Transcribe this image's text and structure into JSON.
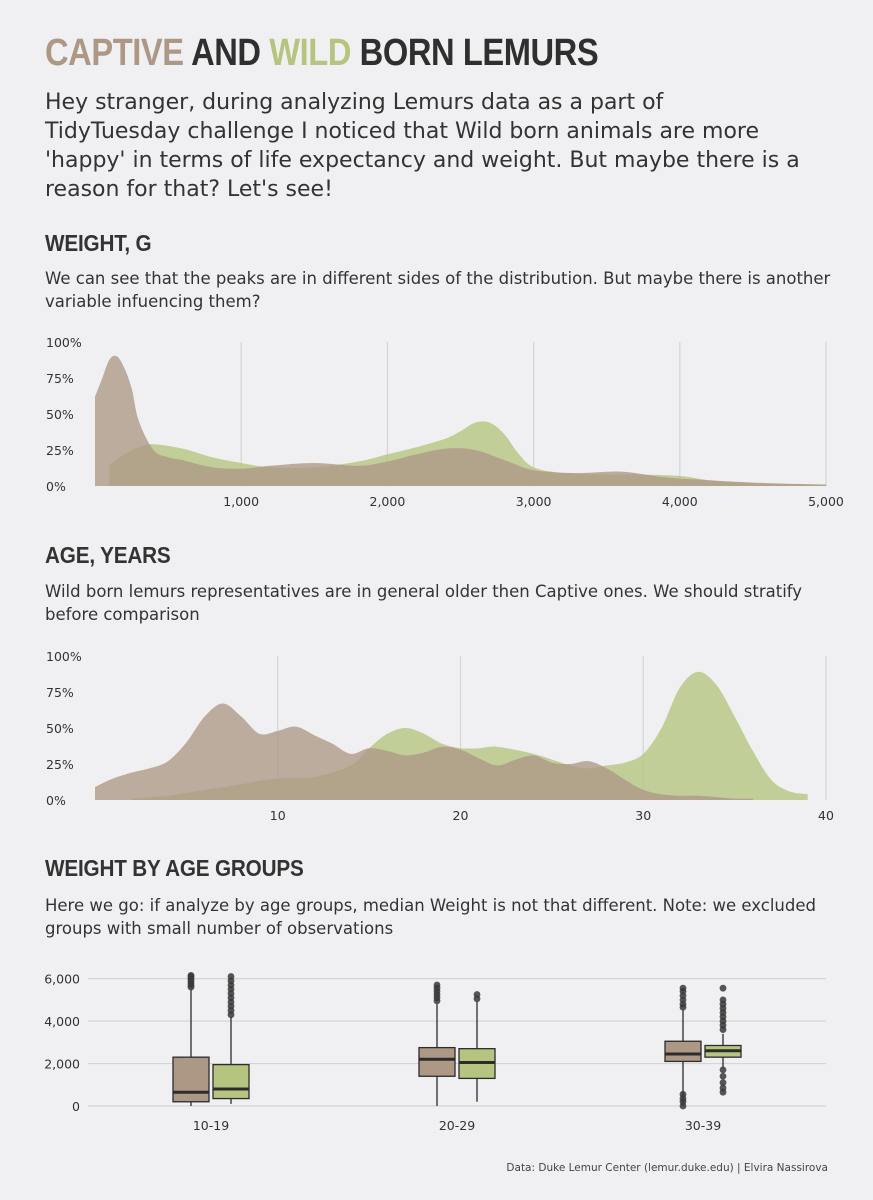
{
  "title": {
    "word1": "CAPTIVE",
    "word2": "AND",
    "word3": "WILD",
    "word4": "BORN LEMURS"
  },
  "intro": "Hey stranger, during analyzing Lemurs data as a part of TidyTuesday challenge I noticed that Wild born animals are more 'happy' in terms of life expectancy and weight. But maybe there is a reason for that? Let's see!",
  "sections": [
    {
      "title": "WEIGHT, G",
      "subtitle": "We can see that the peaks are in different sides of the distribution. But maybe there is another variable infuencing them?"
    },
    {
      "title": "AGE, YEARS",
      "subtitle": "Wild born lemurs representatives are in general older then Captive ones. We should stratify before comparison"
    },
    {
      "title": "WEIGHT BY AGE GROUPS",
      "subtitle": "Here we go: if analyze by age groups, median Weight is not that different. Note: we excluded groups with small number of observations"
    }
  ],
  "caption": "Data: Duke Lemur Center (lemur.duke.edu) | Elvira Nassirova",
  "colors": {
    "captive": "#ad9886",
    "wild": "#b5c47e",
    "text": "#333333",
    "grid": "#d4d4d4"
  },
  "chart_data": [
    {
      "type": "area",
      "xlim": [
        0,
        5000
      ],
      "ylim": [
        0,
        1
      ],
      "x_ticks": [
        1000,
        2000,
        3000,
        4000,
        5000
      ],
      "x_tick_labels": [
        "1,000",
        "2,000",
        "3,000",
        "4,000",
        "5,000"
      ],
      "y_ticks": [
        0,
        0.25,
        0.5,
        0.75,
        1
      ],
      "y_tick_labels": [
        "0%",
        "25%",
        "50%",
        "75%",
        "100%"
      ],
      "grid": "vertical",
      "series": [
        {
          "key": "wild",
          "x": [
            100,
            200,
            300,
            400,
            600,
            800,
            1000,
            1200,
            1500,
            1800,
            2000,
            2200,
            2400,
            2500,
            2600,
            2700,
            2800,
            2900,
            3000,
            3200,
            3500,
            3700,
            4000,
            4200,
            4500,
            5000
          ],
          "values": [
            0.15,
            0.22,
            0.27,
            0.29,
            0.26,
            0.2,
            0.16,
            0.13,
            0.13,
            0.17,
            0.22,
            0.27,
            0.33,
            0.38,
            0.44,
            0.44,
            0.36,
            0.22,
            0.13,
            0.09,
            0.08,
            0.08,
            0.07,
            0.04,
            0.02,
            0.01
          ]
        },
        {
          "key": "captive",
          "x": [
            0,
            50,
            100,
            150,
            200,
            250,
            300,
            400,
            500,
            600,
            800,
            1000,
            1200,
            1500,
            1800,
            2000,
            2200,
            2400,
            2600,
            2800,
            3000,
            3300,
            3600,
            3900,
            4200,
            4600,
            5000
          ],
          "values": [
            0.62,
            0.75,
            0.88,
            0.9,
            0.82,
            0.68,
            0.45,
            0.25,
            0.2,
            0.18,
            0.13,
            0.12,
            0.14,
            0.16,
            0.14,
            0.17,
            0.22,
            0.26,
            0.25,
            0.18,
            0.11,
            0.09,
            0.1,
            0.06,
            0.04,
            0.02,
            0.01
          ]
        }
      ]
    },
    {
      "type": "area",
      "xlim": [
        0,
        40
      ],
      "ylim": [
        0,
        1
      ],
      "x_ticks": [
        10,
        20,
        30,
        40
      ],
      "x_tick_labels": [
        "10",
        "20",
        "30",
        "40"
      ],
      "y_ticks": [
        0,
        0.25,
        0.5,
        0.75,
        1
      ],
      "y_tick_labels": [
        "0%",
        "25%",
        "50%",
        "75%",
        "100%"
      ],
      "grid": "vertical",
      "series": [
        {
          "key": "wild",
          "x": [
            2,
            4,
            6,
            8,
            10,
            12,
            14,
            15,
            16,
            17,
            18,
            19,
            20,
            21,
            22,
            24,
            26,
            27,
            28,
            29,
            30,
            31,
            32,
            33,
            34,
            35,
            36,
            37,
            38,
            39
          ],
          "values": [
            0.01,
            0.03,
            0.07,
            0.11,
            0.15,
            0.16,
            0.24,
            0.36,
            0.46,
            0.5,
            0.46,
            0.39,
            0.36,
            0.36,
            0.37,
            0.32,
            0.24,
            0.22,
            0.24,
            0.26,
            0.32,
            0.5,
            0.78,
            0.89,
            0.8,
            0.58,
            0.34,
            0.14,
            0.06,
            0.04
          ]
        },
        {
          "key": "captive",
          "x": [
            0,
            1,
            2,
            3,
            4,
            5,
            6,
            7,
            8,
            9,
            10,
            11,
            12,
            13,
            14,
            15,
            16,
            17,
            18,
            19,
            20,
            21,
            22,
            23,
            24,
            25,
            26,
            27,
            28,
            29,
            30,
            31,
            32,
            33,
            34,
            35,
            36
          ],
          "values": [
            0.09,
            0.15,
            0.19,
            0.22,
            0.27,
            0.4,
            0.58,
            0.67,
            0.58,
            0.46,
            0.48,
            0.51,
            0.45,
            0.39,
            0.32,
            0.36,
            0.34,
            0.31,
            0.33,
            0.37,
            0.35,
            0.29,
            0.24,
            0.28,
            0.31,
            0.26,
            0.25,
            0.27,
            0.22,
            0.14,
            0.07,
            0.04,
            0.03,
            0.03,
            0.02,
            0.01,
            0.01
          ]
        }
      ]
    },
    {
      "type": "box",
      "ylim": [
        0,
        6500
      ],
      "y_ticks": [
        0,
        2000,
        4000,
        6000
      ],
      "y_tick_labels": [
        "0",
        "2,000",
        "4,000",
        "6,000"
      ],
      "categories": [
        "10-19",
        "20-29",
        "30-39"
      ],
      "grid": "horizontal",
      "groups": [
        {
          "category": "10-19",
          "captive": {
            "min": 0,
            "q1": 200,
            "median": 650,
            "q3": 2300,
            "max": 5500,
            "outliers": [
              5600,
              5700,
              5800,
              5900,
              6000,
              6100,
              6150
            ]
          },
          "wild": {
            "min": 100,
            "q1": 350,
            "median": 800,
            "q3": 1950,
            "max": 4200,
            "outliers": [
              4300,
              4500,
              4700,
              4900,
              5100,
              5300,
              5500,
              5700,
              5900,
              6100
            ]
          }
        },
        {
          "category": "20-29",
          "captive": {
            "min": 0,
            "q1": 1400,
            "median": 2200,
            "q3": 2750,
            "max": 4800,
            "outliers": [
              4950,
              5100,
              5250,
              5400,
              5550,
              5700
            ]
          },
          "wild": {
            "min": 200,
            "q1": 1300,
            "median": 2050,
            "q3": 2700,
            "max": 4900,
            "outliers": [
              5050,
              5250
            ]
          }
        },
        {
          "category": "30-39",
          "captive": {
            "min": 0,
            "q1": 2100,
            "median": 2450,
            "q3": 3050,
            "max": 4500,
            "outliers": [
              4650,
              4800,
              5000,
              5200,
              5400,
              5550,
              0,
              200,
              350,
              550
            ]
          },
          "wild": {
            "min": 1800,
            "q1": 2300,
            "median": 2600,
            "q3": 2850,
            "max": 3400,
            "outliers": [
              3600,
              3800,
              4000,
              4200,
              4400,
              4600,
              4800,
              5000,
              5550,
              1700,
              1400,
              1100,
              850,
              650
            ]
          }
        }
      ]
    }
  ]
}
